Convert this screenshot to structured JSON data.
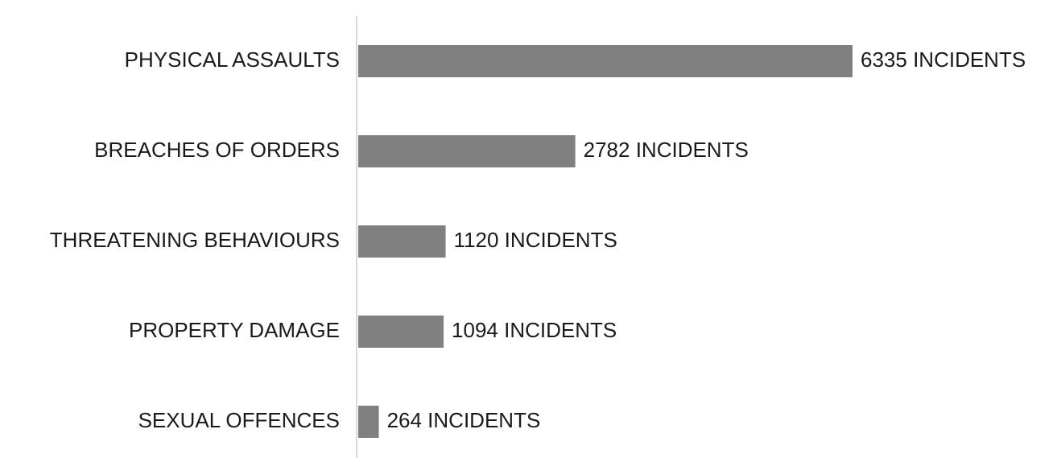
{
  "chart_data": {
    "type": "bar",
    "orientation": "horizontal",
    "categories": [
      "PHYSICAL ASSAULTS",
      "BREACHES OF ORDERS",
      "THREATENING BEHAVIOURS",
      "PROPERTY DAMAGE",
      "SEXUAL OFFENCES"
    ],
    "values": [
      6335,
      2782,
      1120,
      1094,
      264
    ],
    "value_labels": [
      "6335 INCIDENTS",
      "2782 INCIDENTS",
      "1120 INCIDENTS",
      "1094 INCIDENTS",
      "264 INCIDENTS"
    ],
    "color": "#808080"
  }
}
